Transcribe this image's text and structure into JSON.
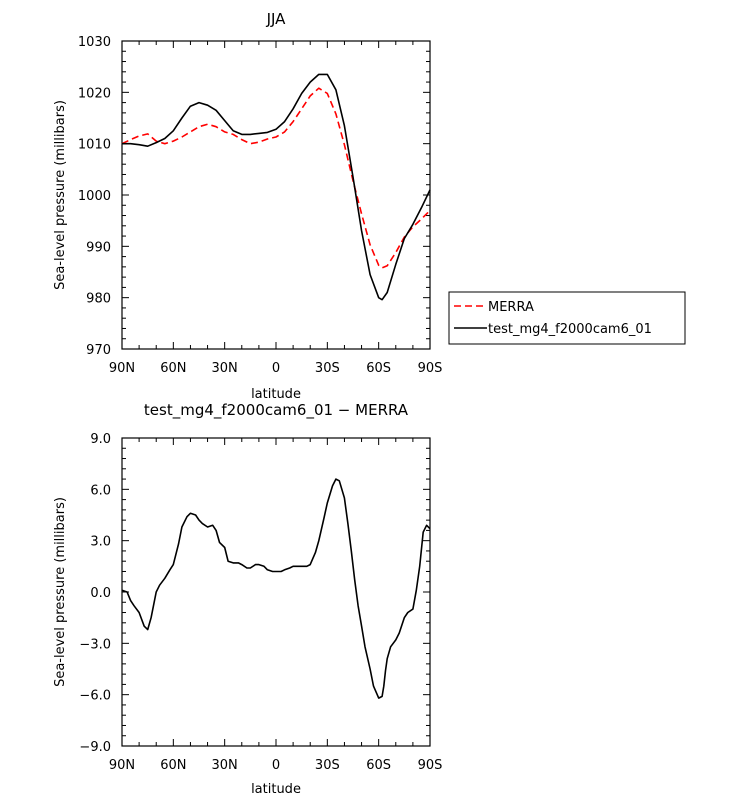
{
  "chart_data": [
    {
      "type": "line",
      "title": "JJA",
      "xlabel": "latitude",
      "ylabel": "Sea-level pressure (millibars)",
      "xlim": [
        90,
        -90
      ],
      "ylim": [
        970,
        1030
      ],
      "x_tick_values": [
        90,
        60,
        30,
        0,
        -30,
        -60,
        -90
      ],
      "x_tick_labels": [
        "90N",
        "60N",
        "30N",
        "0",
        "30S",
        "60S",
        "90S"
      ],
      "y_tick_values": [
        970,
        980,
        990,
        1000,
        1010,
        1020,
        1030
      ],
      "y_tick_labels": [
        "970",
        "980",
        "990",
        "1000",
        "1010",
        "1020",
        "1030"
      ],
      "legend_position": "right",
      "series": [
        {
          "name": "MERRA",
          "color": "#ff0000",
          "dash": "dashed",
          "x": [
            90,
            85,
            80,
            75,
            70,
            65,
            60,
            55,
            50,
            45,
            40,
            35,
            30,
            25,
            20,
            15,
            10,
            5,
            0,
            -5,
            -10,
            -15,
            -20,
            -25,
            -30,
            -35,
            -40,
            -45,
            -50,
            -55,
            -60,
            -62,
            -65,
            -70,
            -75,
            -80,
            -85,
            -90
          ],
          "values": [
            1010.0,
            1010.8,
            1011.5,
            1011.9,
            1010.5,
            1010.0,
            1010.5,
            1011.3,
            1012.3,
            1013.3,
            1013.8,
            1013.3,
            1012.3,
            1011.8,
            1010.8,
            1010.0,
            1010.3,
            1010.9,
            1011.3,
            1012.3,
            1014.3,
            1016.8,
            1019.3,
            1020.8,
            1019.8,
            1015.8,
            1009.8,
            1002.8,
            996.3,
            990.3,
            986.3,
            985.8,
            986.2,
            988.8,
            991.8,
            993.8,
            995.3,
            997.0
          ]
        },
        {
          "name": "test_mg4_f2000cam6_01",
          "color": "#000000",
          "dash": "solid",
          "x": [
            90,
            85,
            80,
            75,
            70,
            65,
            60,
            55,
            50,
            45,
            40,
            35,
            30,
            25,
            20,
            15,
            10,
            5,
            0,
            -5,
            -10,
            -15,
            -20,
            -25,
            -30,
            -35,
            -40,
            -45,
            -50,
            -55,
            -60,
            -62,
            -65,
            -70,
            -75,
            -80,
            -85,
            -90
          ],
          "values": [
            1010.0,
            1010.0,
            1009.8,
            1009.5,
            1010.2,
            1011.0,
            1012.5,
            1015.0,
            1017.3,
            1018.0,
            1017.5,
            1016.5,
            1014.5,
            1012.5,
            1011.8,
            1011.8,
            1012.0,
            1012.2,
            1012.8,
            1014.3,
            1016.8,
            1019.8,
            1022.0,
            1023.5,
            1023.5,
            1020.5,
            1013.5,
            1003.5,
            993.0,
            984.5,
            980.0,
            979.6,
            981.0,
            986.5,
            991.5,
            994.3,
            997.5,
            1001.0
          ]
        }
      ]
    },
    {
      "type": "line",
      "title": "test_mg4_f2000cam6_01 − MERRA",
      "xlabel": "latitude",
      "ylabel": "Sea-level pressure (millibars)",
      "xlim": [
        90,
        -90
      ],
      "ylim": [
        -9,
        9
      ],
      "x_tick_values": [
        90,
        60,
        30,
        0,
        -30,
        -60,
        -90
      ],
      "x_tick_labels": [
        "90N",
        "60N",
        "30N",
        "0",
        "30S",
        "60S",
        "90S"
      ],
      "y_tick_values": [
        -9,
        -6,
        -3,
        0,
        3,
        6,
        9
      ],
      "y_tick_labels": [
        "−9.0",
        "−6.0",
        "−3.0",
        "0.0",
        "3.0",
        "6.0",
        "9.0"
      ],
      "series": [
        {
          "color": "#000000",
          "dash": "solid",
          "x": [
            90,
            87,
            85,
            83,
            80,
            77,
            75,
            73,
            70,
            68,
            65,
            62,
            60,
            57,
            55,
            52,
            50,
            47,
            45,
            43,
            40,
            37,
            35,
            33,
            30,
            28,
            25,
            22,
            20,
            17,
            15,
            12,
            10,
            7,
            5,
            2,
            0,
            -3,
            -5,
            -8,
            -10,
            -12,
            -15,
            -18,
            -20,
            -23,
            -25,
            -28,
            -30,
            -33,
            -35,
            -37,
            -40,
            -42,
            -44,
            -46,
            -48,
            -50,
            -52,
            -55,
            -57,
            -60,
            -62,
            -63,
            -64,
            -65,
            -67,
            -70,
            -72,
            -75,
            -77,
            -80,
            -82,
            -84,
            -86,
            -88,
            -90
          ],
          "values": [
            0.1,
            0.0,
            -0.5,
            -0.8,
            -1.2,
            -2.0,
            -2.2,
            -1.5,
            0.0,
            0.4,
            0.8,
            1.3,
            1.6,
            2.8,
            3.8,
            4.4,
            4.6,
            4.5,
            4.2,
            4.0,
            3.8,
            3.9,
            3.6,
            2.9,
            2.6,
            1.8,
            1.7,
            1.7,
            1.6,
            1.4,
            1.4,
            1.6,
            1.6,
            1.5,
            1.3,
            1.2,
            1.2,
            1.2,
            1.3,
            1.4,
            1.5,
            1.5,
            1.5,
            1.5,
            1.6,
            2.3,
            3.0,
            4.3,
            5.2,
            6.2,
            6.6,
            6.5,
            5.5,
            4.0,
            2.4,
            0.7,
            -0.8,
            -2.0,
            -3.2,
            -4.5,
            -5.5,
            -6.2,
            -6.1,
            -5.5,
            -4.6,
            -3.9,
            -3.2,
            -2.8,
            -2.4,
            -1.5,
            -1.2,
            -1.0,
            0.1,
            1.5,
            3.5,
            3.9,
            3.7
          ]
        }
      ]
    }
  ]
}
